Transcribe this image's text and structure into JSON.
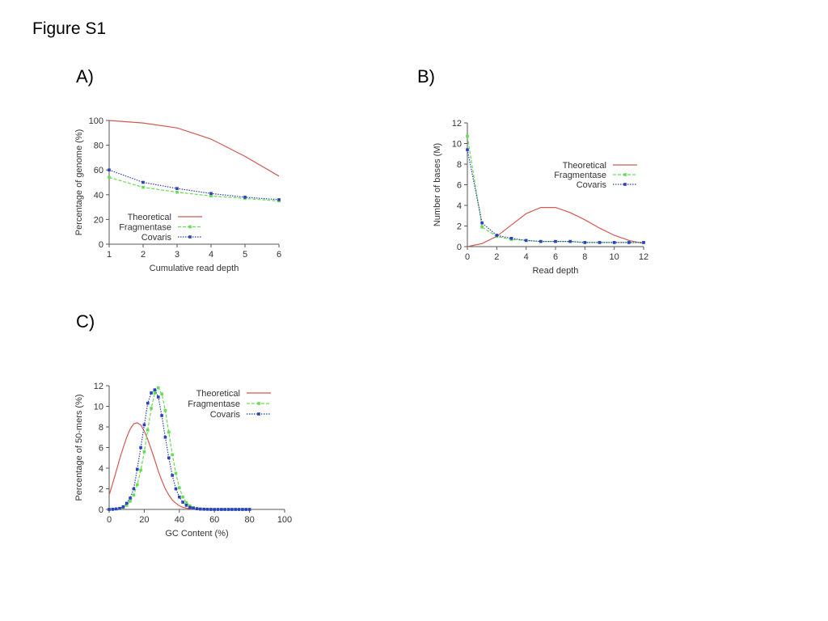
{
  "figure_title": "Figure S1",
  "panels": [
    {
      "label": "A)"
    },
    {
      "label": "B)"
    },
    {
      "label": "C)"
    }
  ],
  "colors": {
    "theoretical": "#d05a50",
    "fragmentase": "#66dd55",
    "covaris": "#2b3fbf"
  },
  "chart_data": [
    {
      "type": "line",
      "xlabel": "Cumulative read depth",
      "ylabel": "Percentage of genome (%)",
      "xlim": [
        1,
        6
      ],
      "ylim": [
        0,
        100
      ],
      "xticks": [
        1,
        2,
        3,
        4,
        5,
        6
      ],
      "yticks": [
        0,
        20,
        40,
        60,
        80,
        100
      ],
      "legend": "bottom-left",
      "series": [
        {
          "name": "Theoretical",
          "x": [
            1,
            2,
            3,
            4,
            5,
            6
          ],
          "values": [
            100,
            98,
            94,
            85,
            71,
            55
          ]
        },
        {
          "name": "Fragmentase",
          "x": [
            1,
            2,
            3,
            4,
            5,
            6
          ],
          "values": [
            54,
            46,
            42,
            39,
            37,
            35
          ]
        },
        {
          "name": "Covaris",
          "x": [
            1,
            2,
            3,
            4,
            5,
            6
          ],
          "values": [
            60,
            50,
            45,
            41,
            38,
            36
          ]
        }
      ]
    },
    {
      "type": "line",
      "xlabel": "Read depth",
      "ylabel": "Number of bases (M)",
      "xlim": [
        0,
        12
      ],
      "ylim": [
        0,
        12
      ],
      "xticks": [
        0,
        2,
        4,
        6,
        8,
        10,
        12
      ],
      "yticks": [
        0,
        2,
        4,
        6,
        8,
        10,
        12
      ],
      "legend": "top-right",
      "series": [
        {
          "name": "Theoretical",
          "x": [
            0,
            1,
            2,
            3,
            4,
            5,
            6,
            7,
            8,
            9,
            10,
            11,
            12
          ],
          "values": [
            0.0,
            0.3,
            1.0,
            2.1,
            3.2,
            3.8,
            3.8,
            3.3,
            2.6,
            1.8,
            1.1,
            0.6,
            0.3
          ]
        },
        {
          "name": "Fragmentase",
          "x": [
            0,
            1,
            2,
            3,
            4,
            5,
            6,
            7,
            8,
            9,
            10,
            11,
            12
          ],
          "values": [
            10.7,
            1.9,
            1.0,
            0.7,
            0.6,
            0.5,
            0.5,
            0.5,
            0.4,
            0.4,
            0.4,
            0.4,
            0.4
          ]
        },
        {
          "name": "Covaris",
          "x": [
            0,
            1,
            2,
            3,
            4,
            5,
            6,
            7,
            8,
            9,
            10,
            11,
            12
          ],
          "values": [
            9.4,
            2.3,
            1.1,
            0.8,
            0.6,
            0.5,
            0.5,
            0.5,
            0.4,
            0.4,
            0.4,
            0.4,
            0.4
          ]
        }
      ]
    },
    {
      "type": "line",
      "xlabel": "GC Content (%)",
      "ylabel": "Percentage of 50-mers (%)",
      "xlim": [
        0,
        100
      ],
      "ylim": [
        0,
        12
      ],
      "xticks": [
        0,
        20,
        40,
        60,
        80,
        100
      ],
      "yticks": [
        0,
        2,
        4,
        6,
        8,
        10,
        12
      ],
      "legend": "top-right",
      "series": [
        {
          "name": "Theoretical",
          "x": [
            0,
            2,
            4,
            6,
            8,
            10,
            12,
            14,
            16,
            18,
            20,
            22,
            24,
            26,
            28,
            30,
            32,
            34,
            36,
            38,
            40,
            42,
            44,
            46,
            48,
            50,
            55,
            60
          ],
          "values": [
            1.4,
            2.5,
            3.7,
            4.9,
            6.0,
            7.0,
            7.8,
            8.3,
            8.4,
            8.2,
            7.6,
            6.8,
            5.8,
            4.8,
            3.7,
            2.8,
            2.0,
            1.4,
            0.9,
            0.6,
            0.35,
            0.2,
            0.12,
            0.07,
            0.04,
            0.02,
            0.0,
            0.0
          ]
        },
        {
          "name": "Fragmentase",
          "x": [
            0,
            2,
            4,
            6,
            8,
            10,
            12,
            14,
            16,
            18,
            20,
            22,
            24,
            26,
            28,
            30,
            32,
            34,
            36,
            38,
            40,
            42,
            44,
            46,
            48,
            50,
            52,
            54,
            56,
            58,
            60,
            62,
            64,
            66,
            68,
            70,
            72,
            74,
            76,
            78,
            80
          ],
          "values": [
            0.0,
            0.0,
            0.05,
            0.1,
            0.2,
            0.4,
            0.8,
            1.4,
            2.4,
            3.8,
            5.6,
            7.7,
            9.8,
            11.3,
            11.8,
            11.2,
            9.6,
            7.5,
            5.3,
            3.5,
            2.1,
            1.2,
            0.65,
            0.35,
            0.18,
            0.1,
            0.05,
            0.03,
            0.02,
            0.01,
            0.0,
            0.0,
            0.0,
            0.0,
            0.0,
            0.0,
            0.0,
            0.0,
            0.0,
            0.0,
            0.0
          ]
        },
        {
          "name": "Covaris",
          "x": [
            0,
            2,
            4,
            6,
            8,
            10,
            12,
            14,
            16,
            18,
            20,
            22,
            24,
            26,
            28,
            30,
            32,
            34,
            36,
            38,
            40,
            42,
            44,
            46,
            48,
            50,
            52,
            54,
            56,
            58,
            60,
            62,
            64,
            66,
            68,
            70,
            72,
            74,
            76,
            78,
            80
          ],
          "values": [
            0.0,
            0.02,
            0.05,
            0.1,
            0.25,
            0.6,
            1.1,
            2.0,
            3.9,
            6.0,
            8.2,
            10.3,
            11.3,
            11.6,
            10.9,
            9.1,
            7.0,
            5.0,
            3.3,
            2.0,
            1.2,
            0.7,
            0.4,
            0.2,
            0.12,
            0.06,
            0.03,
            0.02,
            0.01,
            0.0,
            0.0,
            0.0,
            0.0,
            0.0,
            0.0,
            0.0,
            0.0,
            0.0,
            0.0,
            0.0,
            0.0
          ]
        }
      ]
    }
  ]
}
